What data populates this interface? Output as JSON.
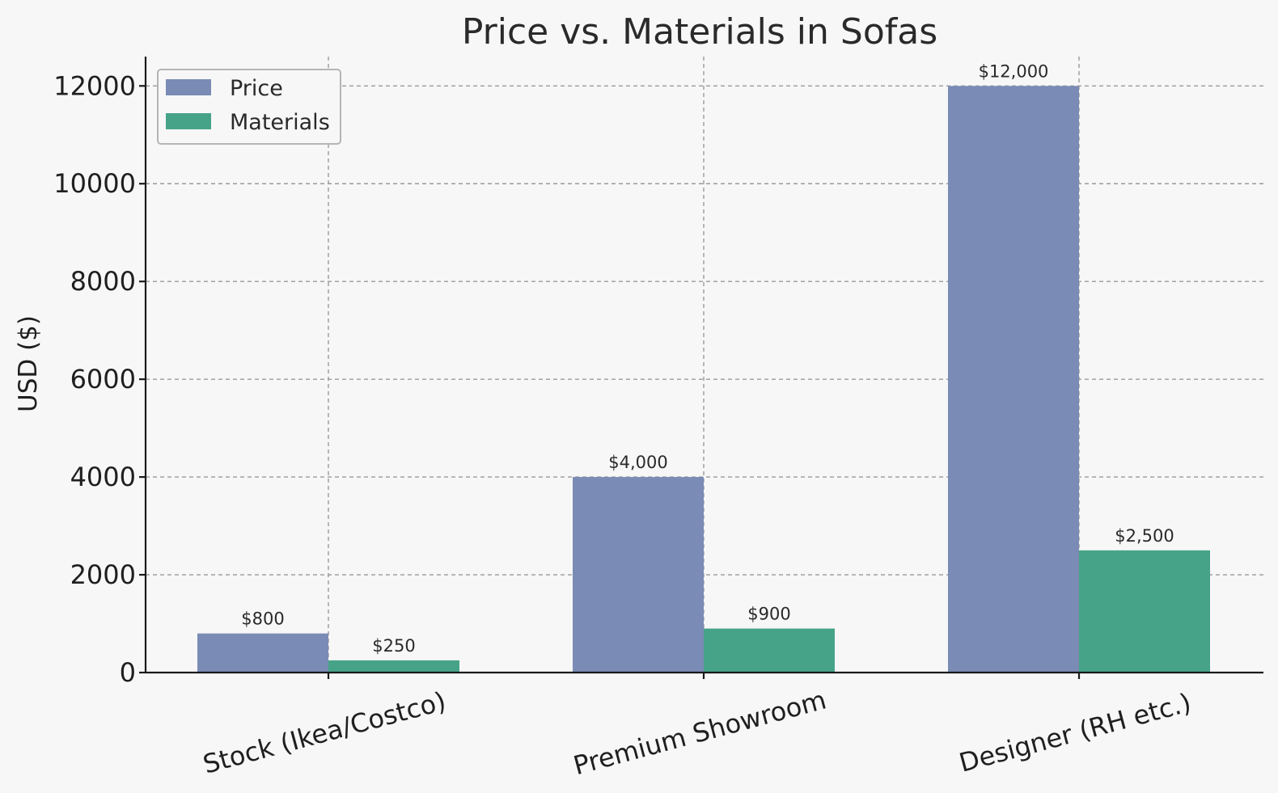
{
  "chart_data": {
    "type": "bar",
    "title": "Price vs. Materials in Sofas",
    "xlabel": "",
    "ylabel": "USD ($)",
    "categories": [
      "Stock (Ikea/Costco)",
      "Premium Showroom",
      "Designer (RH etc.)"
    ],
    "series": [
      {
        "name": "Price",
        "values": [
          800,
          4000,
          12000
        ],
        "labels": [
          "$800",
          "$4,000",
          "$12,000"
        ],
        "color": "#7a8bb5"
      },
      {
        "name": "Materials",
        "values": [
          250,
          900,
          2500
        ],
        "labels": [
          "$250",
          "$900",
          "$2,500"
        ],
        "color": "#47a388"
      }
    ],
    "yticks": [
      0,
      2000,
      4000,
      6000,
      8000,
      10000,
      12000
    ],
    "ylim": [
      0,
      12600
    ],
    "grid": true,
    "legend_position": "top-left"
  }
}
